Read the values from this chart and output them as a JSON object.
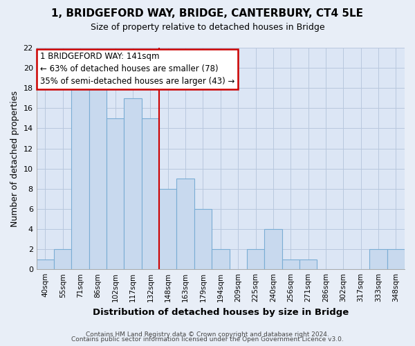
{
  "title": "1, BRIDGEFORD WAY, BRIDGE, CANTERBURY, CT4 5LE",
  "subtitle": "Size of property relative to detached houses in Bridge",
  "xlabel": "Distribution of detached houses by size in Bridge",
  "ylabel": "Number of detached properties",
  "categories": [
    "40sqm",
    "55sqm",
    "71sqm",
    "86sqm",
    "102sqm",
    "117sqm",
    "132sqm",
    "148sqm",
    "163sqm",
    "179sqm",
    "194sqm",
    "209sqm",
    "225sqm",
    "240sqm",
    "256sqm",
    "271sqm",
    "286sqm",
    "302sqm",
    "317sqm",
    "333sqm",
    "348sqm"
  ],
  "values": [
    1,
    2,
    18,
    18,
    15,
    17,
    15,
    8,
    9,
    6,
    2,
    0,
    2,
    4,
    1,
    1,
    0,
    0,
    0,
    2,
    2
  ],
  "bar_color": "#c8d9ee",
  "bar_edge_color": "#7aadd4",
  "ylim": [
    0,
    22
  ],
  "yticks": [
    0,
    2,
    4,
    6,
    8,
    10,
    12,
    14,
    16,
    18,
    20,
    22
  ],
  "annotation_title": "1 BRIDGEFORD WAY: 141sqm",
  "annotation_line1": "← 63% of detached houses are smaller (78)",
  "annotation_line2": "35% of semi-detached houses are larger (43) →",
  "annotation_box_color": "#ffffff",
  "annotation_box_edge": "#cc0000",
  "red_line_x": 6.5,
  "footnote1": "Contains HM Land Registry data © Crown copyright and database right 2024.",
  "footnote2": "Contains public sector information licensed under the Open Government Licence v3.0.",
  "bg_color": "#e8eef7",
  "plot_bg_color": "#dce6f5",
  "grid_color": "#b8c8de",
  "title_fontsize": 11,
  "subtitle_fontsize": 9
}
